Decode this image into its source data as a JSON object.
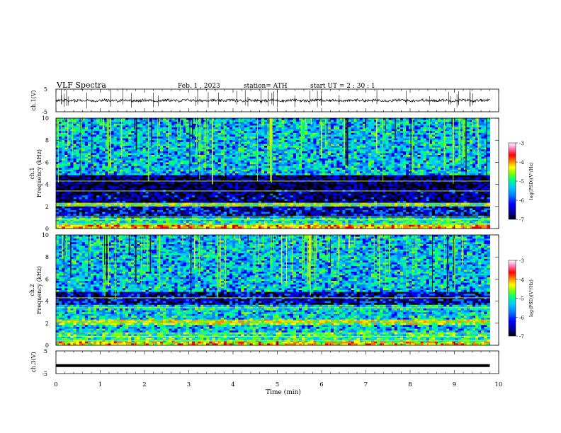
{
  "header": {
    "title": "VLF Spectra",
    "date": "Feb. 1 , 2023",
    "station": "station= ATH",
    "start_ut": "start UT =  2 : 30 : 1"
  },
  "colors": {
    "waveform": "#000000",
    "background": "#ffffff",
    "colormap": [
      "#000000",
      "#00008b",
      "#0000ff",
      "#0080ff",
      "#00c8ff",
      "#00ff80",
      "#80ff00",
      "#ffff00",
      "#ff8000",
      "#ff0000",
      "#ff80c0",
      "#ffffff"
    ]
  },
  "chart_data": [
    {
      "type": "line",
      "panel": "ch1-waveform",
      "ylabel": "ch.1(V)",
      "ytick_labels": [
        "5",
        "-5"
      ],
      "ylim": [
        -5,
        5
      ],
      "xlim": [
        0,
        10
      ],
      "x_extent": [
        0,
        9.8
      ],
      "description_level": 0,
      "noise_amplitude": 0.6
    },
    {
      "type": "heatmap",
      "panel": "ch1-spectrogram",
      "ylabel_lines": [
        "ch.1",
        "Frequency  (kHz)"
      ],
      "ytick_labels": [
        "0",
        "2",
        "4",
        "6",
        "8",
        "10"
      ],
      "ylim": [
        0,
        10
      ],
      "xlim": [
        0,
        10
      ],
      "x_extent": [
        0,
        9.8
      ],
      "colorbar": {
        "label": "log(PSD)(V²/Hz)",
        "tick_labels": [
          "-3",
          "-4",
          "-5",
          "-6",
          "-7"
        ],
        "range": [
          -7,
          -3
        ]
      },
      "bands_khz": [
        {
          "from": 0.0,
          "to": 0.3,
          "level": -4.2
        },
        {
          "from": 0.3,
          "to": 1.0,
          "level": -5.3
        },
        {
          "from": 1.0,
          "to": 2.0,
          "level": -6.4
        },
        {
          "from": 2.0,
          "to": 2.3,
          "level": -5.0
        },
        {
          "from": 2.3,
          "to": 3.5,
          "level": -6.7
        },
        {
          "from": 3.5,
          "to": 4.8,
          "level": -6.8
        },
        {
          "from": 4.8,
          "to": 10.0,
          "level": -5.6
        }
      ]
    },
    {
      "type": "heatmap",
      "panel": "ch2-spectrogram",
      "ylabel_lines": [
        "ch.2",
        "Frequency  (kHz)"
      ],
      "ytick_labels": [
        "0",
        "2",
        "4",
        "6",
        "8",
        "10"
      ],
      "ylim": [
        0,
        10
      ],
      "xlim": [
        0,
        10
      ],
      "x_extent": [
        0,
        9.8
      ],
      "colorbar": {
        "label": "log(PSD)(V²/Hz)",
        "tick_labels": [
          "-3",
          "-4",
          "-5",
          "-6",
          "-7"
        ],
        "range": [
          -7,
          -3
        ]
      },
      "bands_khz": [
        {
          "from": 0.0,
          "to": 0.3,
          "level": -4.4
        },
        {
          "from": 0.3,
          "to": 1.2,
          "level": -5.2
        },
        {
          "from": 1.2,
          "to": 1.9,
          "level": -5.6
        },
        {
          "from": 1.9,
          "to": 2.3,
          "level": -4.8
        },
        {
          "from": 2.3,
          "to": 3.6,
          "level": -5.5
        },
        {
          "from": 3.6,
          "to": 4.8,
          "level": -6.5
        },
        {
          "from": 4.8,
          "to": 10.0,
          "level": -5.6
        }
      ]
    },
    {
      "type": "line",
      "panel": "ch3-waveform",
      "ylabel": "ch.3(V)",
      "ytick_labels": [
        "5",
        "-5"
      ],
      "ylim": [
        -5,
        5
      ],
      "xlim": [
        0,
        10
      ],
      "x_extent": [
        0,
        9.8
      ],
      "description_level": -1.5,
      "noise_amplitude": 0.0
    }
  ],
  "xaxis": {
    "label": "Time  (min)",
    "tick_labels": [
      "0",
      "1",
      "2",
      "3",
      "4",
      "5",
      "6",
      "7",
      "8",
      "9",
      "10"
    ],
    "range": [
      0,
      10
    ]
  }
}
